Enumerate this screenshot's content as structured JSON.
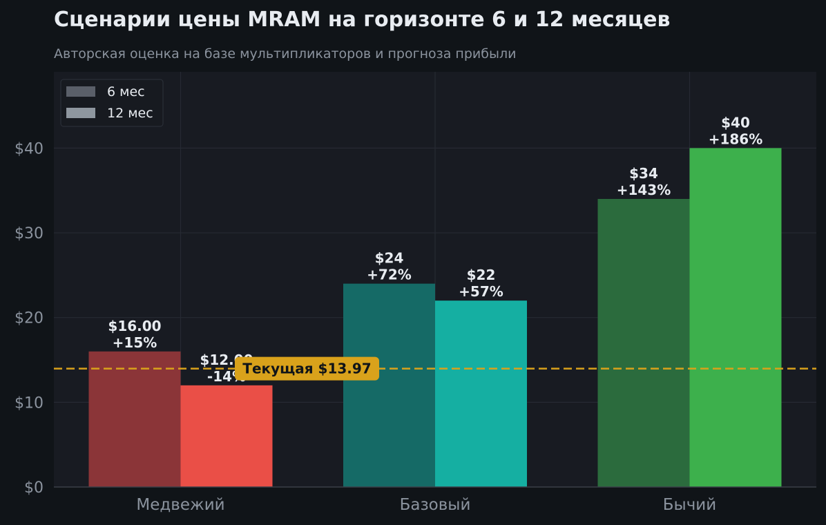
{
  "chart_data": {
    "type": "bar",
    "title": "Сценарии цены MRAM на горизонте 6 и 12 месяцев",
    "subtitle": "Авторская оценка на базе мультипликаторов и прогноза прибыли",
    "categories": [
      "Медвежий",
      "Базовый",
      "Бычий"
    ],
    "series": [
      {
        "name": "6 мес",
        "values": [
          16,
          24,
          34
        ],
        "labels": [
          [
            "$16.00",
            "+15%"
          ],
          [
            "$24",
            "+72%"
          ],
          [
            "$34",
            "+143%"
          ]
        ],
        "colors": [
          "#8B3538",
          "#156A66",
          "#2B6B3D"
        ]
      },
      {
        "name": "12 мес",
        "values": [
          12,
          22,
          40
        ],
        "labels": [
          [
            "$12.00",
            "-14%"
          ],
          [
            "$22",
            "+57%"
          ],
          [
            "$40",
            "+186%"
          ]
        ],
        "colors": [
          "#EA4F47",
          "#15AFA2",
          "#3DB04C"
        ]
      }
    ],
    "legend_colors": [
      "#5A5F69",
      "#8E969F"
    ],
    "legend_position": "top-left",
    "ylim": [
      0,
      49
    ],
    "yticks": [
      0,
      10,
      20,
      30,
      40
    ],
    "ytick_labels": [
      "$0",
      "$10",
      "$20",
      "$30",
      "$40"
    ],
    "grid": true,
    "reference_line": {
      "value": 13.97,
      "label": "Текущая $13.97",
      "color": "#D9A21B"
    },
    "colors": {
      "background": "#101418",
      "plot_bg": "#181B22",
      "grid": "#262A33",
      "text": "#E8ECF1",
      "muted": "#8B939E"
    }
  }
}
